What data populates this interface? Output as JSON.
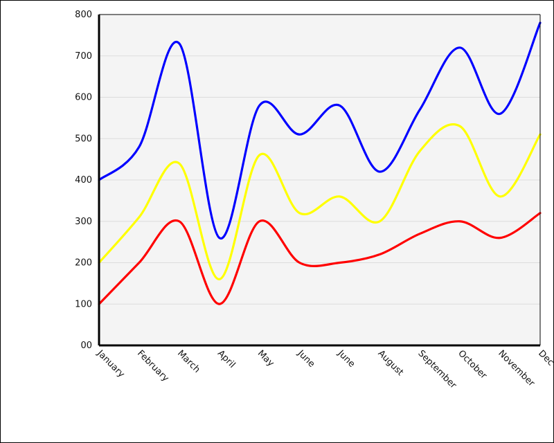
{
  "chart_data": {
    "type": "line",
    "categories": [
      "January",
      "February",
      "March",
      "April",
      "May",
      "June",
      "June",
      "August",
      "September",
      "October",
      "November",
      "Dec"
    ],
    "y_tick_labels": [
      "00",
      "100",
      "200",
      "300",
      "400",
      "500",
      "600",
      "700",
      "800"
    ],
    "ylim": [
      0,
      800
    ],
    "grid": true,
    "legend": "none",
    "plot_background": "#f4f4f4",
    "series": [
      {
        "color": "#ff0000",
        "values": [
          100,
          200,
          300,
          100,
          300,
          200,
          200,
          220,
          270,
          300,
          260,
          320
        ]
      },
      {
        "color": "#ffff00",
        "values": [
          200,
          310,
          440,
          160,
          460,
          320,
          360,
          300,
          470,
          530,
          360,
          510
        ]
      },
      {
        "color": "#0000ff",
        "values": [
          400,
          480,
          730,
          260,
          580,
          510,
          580,
          420,
          570,
          720,
          560,
          780
        ]
      }
    ]
  }
}
